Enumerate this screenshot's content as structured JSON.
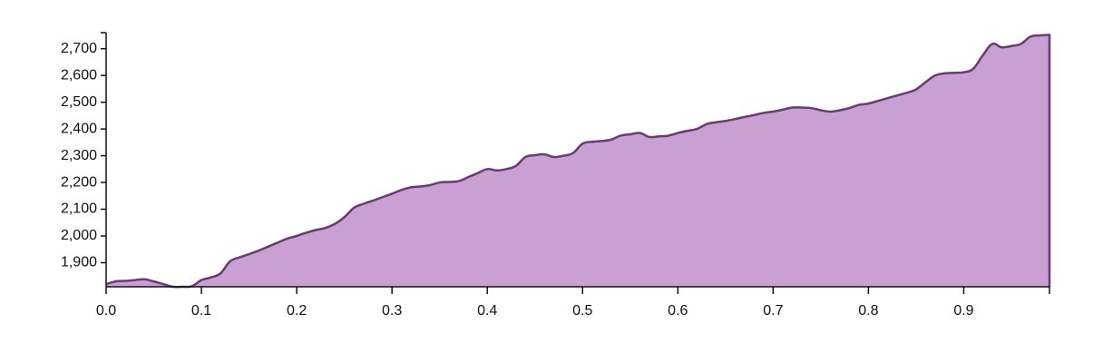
{
  "chart_data": {
    "type": "area",
    "title": "",
    "xlabel": "",
    "ylabel": "",
    "xlim": [
      0,
      0.99
    ],
    "ylim": [
      1810,
      2760
    ],
    "grid": false,
    "legend": "none",
    "fill_color": "#C9A0D2",
    "line_color": "#6B3A76",
    "x_ticks": [
      0.0,
      0.1,
      0.2,
      0.3,
      0.4,
      0.5,
      0.6,
      0.7,
      0.8,
      0.9
    ],
    "x_tick_labels": [
      "0.0",
      "0.1",
      "0.2",
      "0.3",
      "0.4",
      "0.5",
      "0.6",
      "0.7",
      "0.8",
      "0.9"
    ],
    "y_ticks": [
      1900,
      2000,
      2100,
      2200,
      2300,
      2400,
      2500,
      2600,
      2700
    ],
    "y_tick_labels": [
      "1,900",
      "2,000",
      "2,100",
      "2,200",
      "2,300",
      "2,400",
      "2,500",
      "2,600",
      "2,700"
    ],
    "series": [
      {
        "name": "series-1",
        "x": [
          0.0,
          0.01,
          0.02,
          0.03,
          0.04,
          0.05,
          0.06,
          0.07,
          0.08,
          0.09,
          0.1,
          0.11,
          0.12,
          0.13,
          0.14,
          0.15,
          0.16,
          0.17,
          0.18,
          0.19,
          0.2,
          0.21,
          0.22,
          0.23,
          0.24,
          0.25,
          0.26,
          0.27,
          0.28,
          0.29,
          0.3,
          0.31,
          0.32,
          0.33,
          0.34,
          0.35,
          0.36,
          0.37,
          0.38,
          0.39,
          0.4,
          0.41,
          0.42,
          0.43,
          0.44,
          0.45,
          0.46,
          0.47,
          0.48,
          0.49,
          0.5,
          0.51,
          0.52,
          0.53,
          0.54,
          0.55,
          0.56,
          0.57,
          0.58,
          0.59,
          0.6,
          0.61,
          0.62,
          0.63,
          0.64,
          0.65,
          0.66,
          0.67,
          0.68,
          0.69,
          0.7,
          0.71,
          0.72,
          0.73,
          0.74,
          0.75,
          0.76,
          0.77,
          0.78,
          0.79,
          0.8,
          0.81,
          0.82,
          0.83,
          0.84,
          0.85,
          0.86,
          0.87,
          0.88,
          0.89,
          0.9,
          0.91,
          0.92,
          0.93,
          0.94,
          0.95,
          0.96,
          0.97,
          0.98,
          0.99
        ],
        "values": [
          1820,
          1830,
          1832,
          1835,
          1838,
          1830,
          1820,
          1810,
          1810,
          1812,
          1835,
          1845,
          1860,
          1905,
          1920,
          1932,
          1945,
          1960,
          1975,
          1990,
          2000,
          2012,
          2022,
          2030,
          2045,
          2070,
          2105,
          2120,
          2132,
          2145,
          2158,
          2172,
          2182,
          2185,
          2190,
          2200,
          2202,
          2205,
          2220,
          2235,
          2250,
          2245,
          2250,
          2262,
          2295,
          2302,
          2305,
          2295,
          2300,
          2310,
          2345,
          2352,
          2355,
          2360,
          2375,
          2380,
          2385,
          2370,
          2372,
          2375,
          2385,
          2393,
          2400,
          2418,
          2425,
          2430,
          2437,
          2445,
          2452,
          2460,
          2465,
          2472,
          2480,
          2480,
          2478,
          2470,
          2465,
          2470,
          2478,
          2490,
          2495,
          2505,
          2515,
          2525,
          2535,
          2548,
          2575,
          2600,
          2608,
          2610,
          2612,
          2625,
          2675,
          2718,
          2705,
          2710,
          2718,
          2745,
          2750,
          2752
        ]
      }
    ]
  }
}
